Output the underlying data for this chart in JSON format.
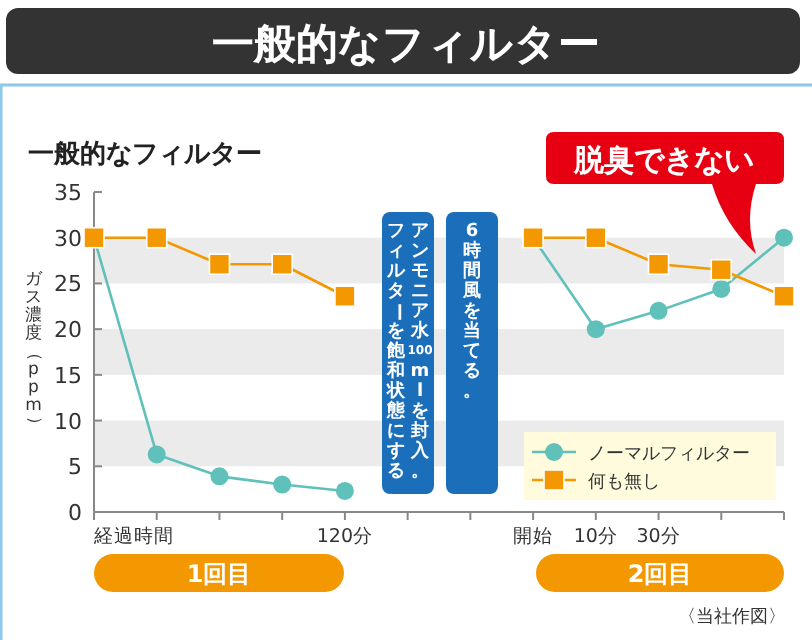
{
  "chart_data": {
    "type": "line",
    "title": "一般的なフィルター",
    "subtitle": "一般的なフィルター",
    "xlabel": "経過時間",
    "ylabel": "ガス濃度（ppm）",
    "categories": [
      null,
      null,
      null,
      null,
      "120分",
      null,
      null,
      "開始",
      "10分",
      "30分",
      null,
      null
    ],
    "series": [
      {
        "name": "ノーマルフィルター",
        "color": "#5fc1b9",
        "marker": "circle",
        "values": [
          30,
          6.3,
          3.9,
          3.0,
          2.3,
          null,
          null,
          30,
          20,
          22,
          24.4,
          30
        ]
      },
      {
        "name": "何も無し",
        "color": "#f39800",
        "marker": "square",
        "values": [
          30,
          30,
          27.1,
          27.1,
          23.6,
          null,
          null,
          30,
          30,
          27.1,
          26.5,
          23.6
        ]
      }
    ],
    "ylim": [
      0,
      35
    ],
    "yticks": [
      0,
      5,
      10,
      15,
      20,
      25,
      30,
      35
    ],
    "bands": [
      {
        "axis": "y",
        "from": 5,
        "to": 10,
        "color": "#ebebeb"
      },
      {
        "axis": "y",
        "from": 15,
        "to": 20,
        "color": "#ebebeb"
      },
      {
        "axis": "y",
        "from": 25,
        "to": 30,
        "color": "#ebebeb"
      }
    ],
    "legend": "bottom right",
    "annotations": [
      "アンモニア水100mlを封入。",
      "フィルターを飽和状態にする。",
      "6時間風を当てる。",
      "脱臭できない",
      "1回目",
      "2回目",
      "〈当社作図〉"
    ]
  }
}
